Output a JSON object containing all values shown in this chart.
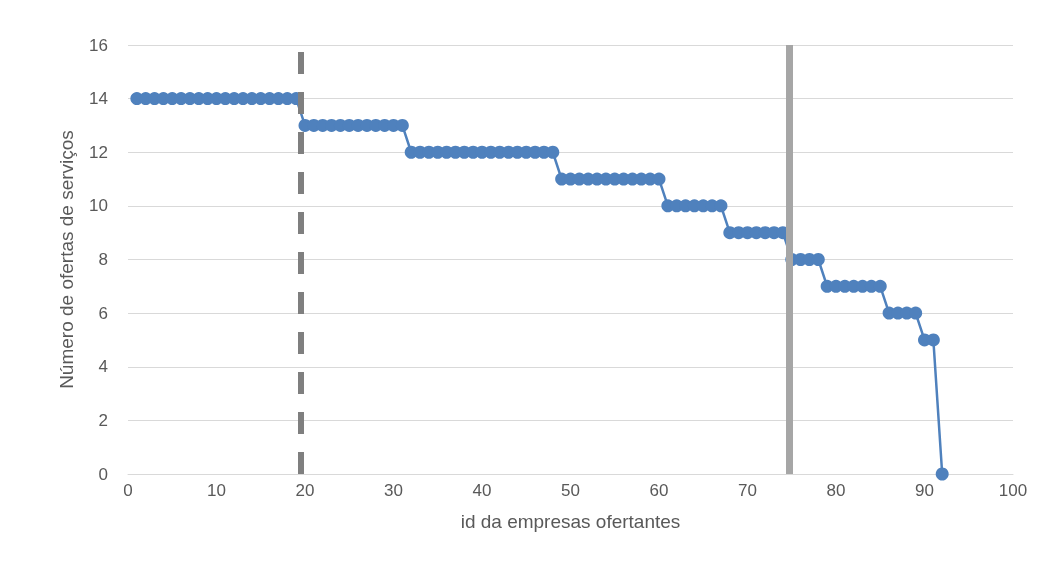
{
  "chart_data": {
    "type": "line",
    "xlabel": "id da empresas ofertantes",
    "ylabel": "Número de ofertas de serviços",
    "x": [
      1,
      2,
      3,
      4,
      5,
      6,
      7,
      8,
      9,
      10,
      11,
      12,
      13,
      14,
      15,
      16,
      17,
      18,
      19,
      20,
      21,
      22,
      23,
      24,
      25,
      26,
      27,
      28,
      29,
      30,
      31,
      32,
      33,
      34,
      35,
      36,
      37,
      38,
      39,
      40,
      41,
      42,
      43,
      44,
      45,
      46,
      47,
      48,
      49,
      50,
      51,
      52,
      53,
      54,
      55,
      56,
      57,
      58,
      59,
      60,
      61,
      62,
      63,
      64,
      65,
      66,
      67,
      68,
      69,
      70,
      71,
      72,
      73,
      74,
      75,
      76,
      77,
      78,
      79,
      80,
      81,
      82,
      83,
      84,
      85,
      86,
      87,
      88,
      89,
      90,
      91,
      92
    ],
    "series": [
      {
        "color": "#4f81bd",
        "values": [
          14,
          14,
          14,
          14,
          14,
          14,
          14,
          14,
          14,
          14,
          14,
          14,
          14,
          14,
          14,
          14,
          14,
          14,
          14,
          13,
          13,
          13,
          13,
          13,
          13,
          13,
          13,
          13,
          13,
          13,
          13,
          12,
          12,
          12,
          12,
          12,
          12,
          12,
          12,
          12,
          12,
          12,
          12,
          12,
          12,
          12,
          12,
          12,
          11,
          11,
          11,
          11,
          11,
          11,
          11,
          11,
          11,
          11,
          11,
          11,
          10,
          10,
          10,
          10,
          10,
          10,
          10,
          9,
          9,
          9,
          9,
          9,
          9,
          9,
          8,
          8,
          8,
          8,
          7,
          7,
          7,
          7,
          7,
          7,
          7,
          6,
          6,
          6,
          6,
          5,
          5,
          0
        ]
      }
    ],
    "marker": "circle",
    "line_style": "solid",
    "xlim": [
      0,
      100
    ],
    "xticks": [
      0,
      10,
      20,
      30,
      40,
      50,
      60,
      70,
      80,
      90,
      100
    ],
    "ylim": [
      0,
      16
    ],
    "yticks": [
      0,
      2,
      4,
      6,
      8,
      10,
      12,
      14,
      16
    ],
    "grid": "y",
    "ref_lines": [
      {
        "axis": "x",
        "value": 19.5,
        "color": "#7f7f7f",
        "line_style": "dashed"
      },
      {
        "axis": "x",
        "value": 74.7,
        "color": "#a6a6a6",
        "line_style": "solid"
      }
    ]
  }
}
